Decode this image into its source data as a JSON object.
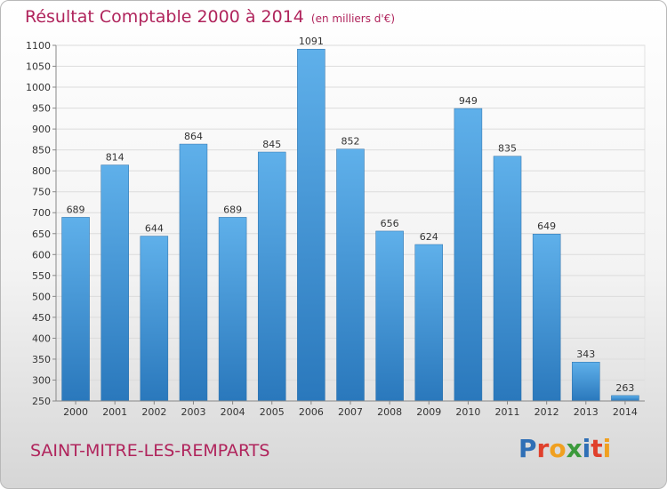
{
  "header": {
    "title": "Résultat Comptable 2000 à 2014",
    "subtitle": "(en milliers d'€)"
  },
  "footer": {
    "commune": "SAINT-MITRE-LES-REMPARTS",
    "logo_text": "Proxiti"
  },
  "colors": {
    "bar": "#3d93d6",
    "title": "#b0245c"
  },
  "chart_data": {
    "type": "bar",
    "title": "Résultat Comptable 2000 à 2014",
    "subtitle": "(en milliers d'€)",
    "categories": [
      "2000",
      "2001",
      "2002",
      "2003",
      "2004",
      "2005",
      "2006",
      "2007",
      "2008",
      "2009",
      "2010",
      "2011",
      "2012",
      "2013",
      "2014"
    ],
    "values": [
      689,
      814,
      644,
      864,
      689,
      845,
      1091,
      852,
      656,
      624,
      949,
      835,
      649,
      343,
      263
    ],
    "ylim": [
      250,
      1100
    ],
    "yticks": [
      250,
      300,
      350,
      400,
      450,
      500,
      550,
      600,
      650,
      700,
      750,
      800,
      850,
      900,
      950,
      1000,
      1050,
      1100
    ],
    "grid": true
  }
}
